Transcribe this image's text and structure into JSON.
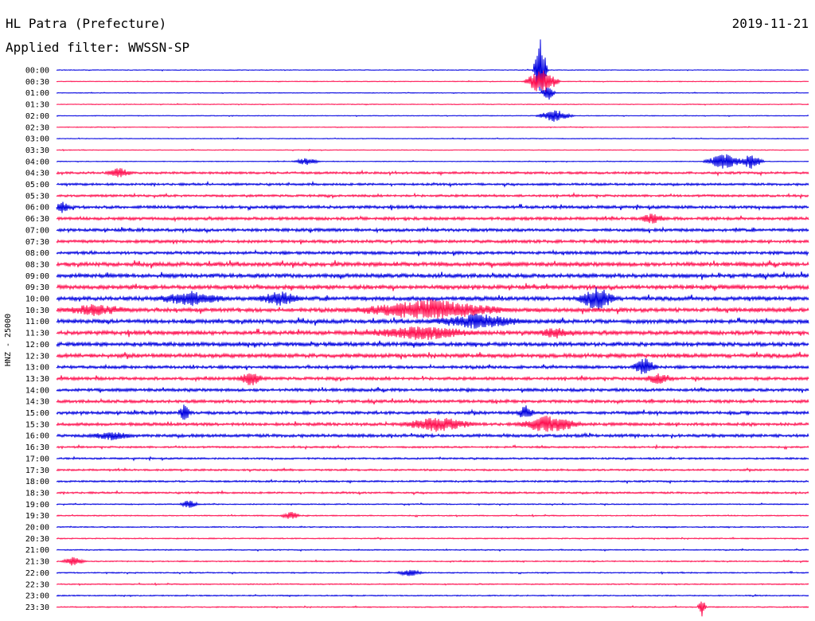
{
  "header": {
    "station": "HL Patra (Prefecture)",
    "date": "2019-11-21",
    "filter": "Applied filter: WWSSN-SP"
  },
  "chart_data": {
    "type": "line",
    "title": "HL Patra (Prefecture)",
    "ylabel": "HNZ - 25000",
    "xlabel": "",
    "row_labels": [
      "00:00",
      "00:30",
      "01:00",
      "01:30",
      "02:00",
      "02:30",
      "03:00",
      "03:30",
      "04:00",
      "04:30",
      "05:00",
      "05:30",
      "06:00",
      "06:30",
      "07:00",
      "07:30",
      "08:00",
      "08:30",
      "09:00",
      "09:30",
      "10:00",
      "10:30",
      "11:00",
      "11:30",
      "12:00",
      "12:30",
      "13:00",
      "13:30",
      "14:00",
      "14:30",
      "15:00",
      "15:30",
      "16:00",
      "16:30",
      "17:00",
      "17:30",
      "18:00",
      "18:30",
      "19:00",
      "19:30",
      "20:00",
      "20:30",
      "21:00",
      "21:30",
      "22:00",
      "22:30",
      "23:00",
      "23:30"
    ],
    "row_colors": [
      "#0000e0",
      "#ff1050"
    ],
    "grid": false,
    "legend": "none"
  }
}
